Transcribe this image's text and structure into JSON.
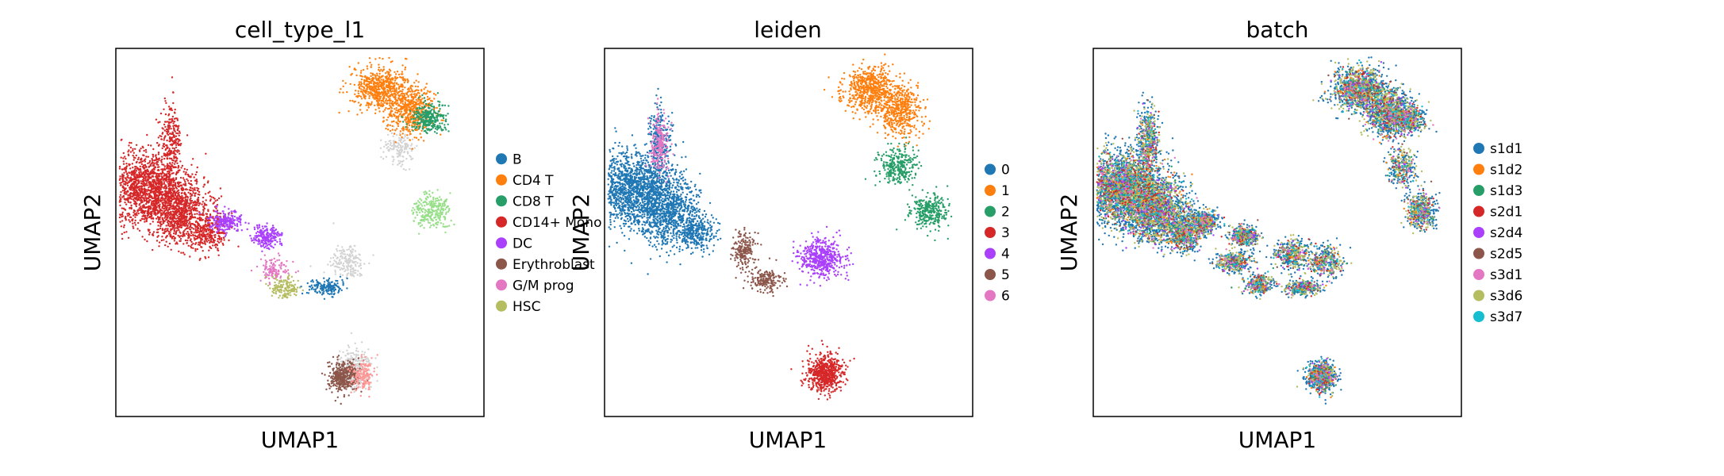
{
  "chart_data": [
    {
      "type": "scatter",
      "title": "cell_type_l1",
      "xlabel": "UMAP1",
      "ylabel": "UMAP2",
      "grid": false,
      "legend": "right",
      "legend_entries": [
        {
          "label": "B",
          "color": "#1f77b4"
        },
        {
          "label": "CD4 T",
          "color": "#ff7f0e"
        },
        {
          "label": "CD8 T",
          "color": "#279e68"
        },
        {
          "label": "CD14+ Mono",
          "color": "#d62728"
        },
        {
          "label": "DC",
          "color": "#aa40fc"
        },
        {
          "label": "Erythroblast",
          "color": "#8c564b"
        },
        {
          "label": "G/M prog",
          "color": "#e377c2"
        },
        {
          "label": "HSC",
          "color": "#b5bd61"
        }
      ],
      "unlabeled_color": "#d3d3d3"
    },
    {
      "type": "scatter",
      "title": "leiden",
      "xlabel": "UMAP1",
      "ylabel": "UMAP2",
      "grid": false,
      "legend": "right",
      "legend_entries": [
        {
          "label": "0",
          "color": "#1f77b4"
        },
        {
          "label": "1",
          "color": "#ff7f0e"
        },
        {
          "label": "2",
          "color": "#279e68"
        },
        {
          "label": "3",
          "color": "#d62728"
        },
        {
          "label": "4",
          "color": "#aa40fc"
        },
        {
          "label": "5",
          "color": "#8c564b"
        },
        {
          "label": "6",
          "color": "#e377c2"
        }
      ]
    },
    {
      "type": "scatter",
      "title": "batch",
      "xlabel": "UMAP1",
      "ylabel": "UMAP2",
      "grid": false,
      "legend": "right",
      "legend_entries": [
        {
          "label": "s1d1",
          "color": "#1f77b4"
        },
        {
          "label": "s1d2",
          "color": "#ff7f0e"
        },
        {
          "label": "s1d3",
          "color": "#279e68"
        },
        {
          "label": "s2d1",
          "color": "#d62728"
        },
        {
          "label": "s2d4",
          "color": "#aa40fc"
        },
        {
          "label": "s2d5",
          "color": "#8c564b"
        },
        {
          "label": "s3d1",
          "color": "#e377c2"
        },
        {
          "label": "s3d6",
          "color": "#b5bd61"
        },
        {
          "label": "s3d7",
          "color": "#17becf"
        }
      ]
    }
  ]
}
